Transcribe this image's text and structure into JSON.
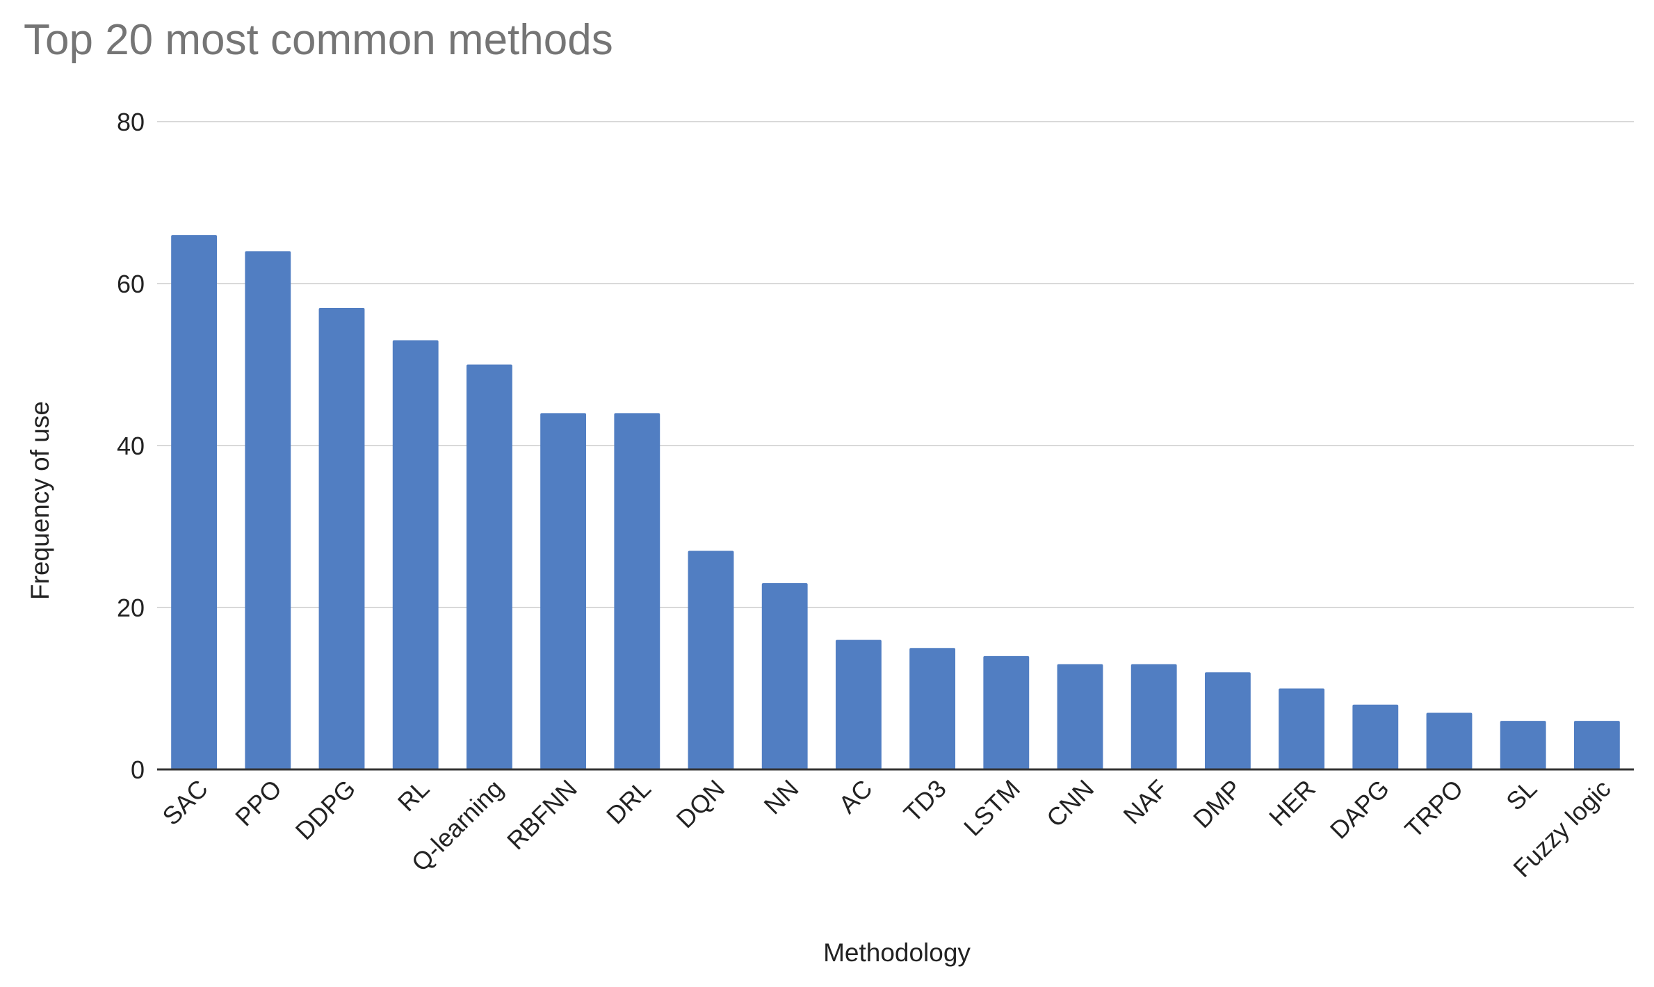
{
  "chart_data": {
    "type": "bar",
    "title": "Top 20 most common methods",
    "xlabel": "Methodology",
    "ylabel": "Frequency of use",
    "ylim": [
      0,
      80
    ],
    "yticks": [
      0,
      20,
      40,
      60,
      80
    ],
    "grid": true,
    "legend": "none",
    "categories": [
      "SAC",
      "PPO",
      "DDPG",
      "RL",
      "Q-learning",
      "RBFNN",
      "DRL",
      "DQN",
      "NN",
      "AC",
      "TD3",
      "LSTM",
      "CNN",
      "NAF",
      "DMP",
      "HER",
      "DAPG",
      "TRPO",
      "SL",
      "Fuzzy logic"
    ],
    "values": [
      66,
      64,
      57,
      53,
      50,
      44,
      44,
      27,
      23,
      16,
      15,
      14,
      13,
      13,
      12,
      10,
      8,
      7,
      6,
      6
    ],
    "colors": {
      "bar": "#517ec2",
      "grid": "#d9d9d9",
      "axis": "#333333",
      "text": "#222222",
      "title": "#757575"
    }
  }
}
